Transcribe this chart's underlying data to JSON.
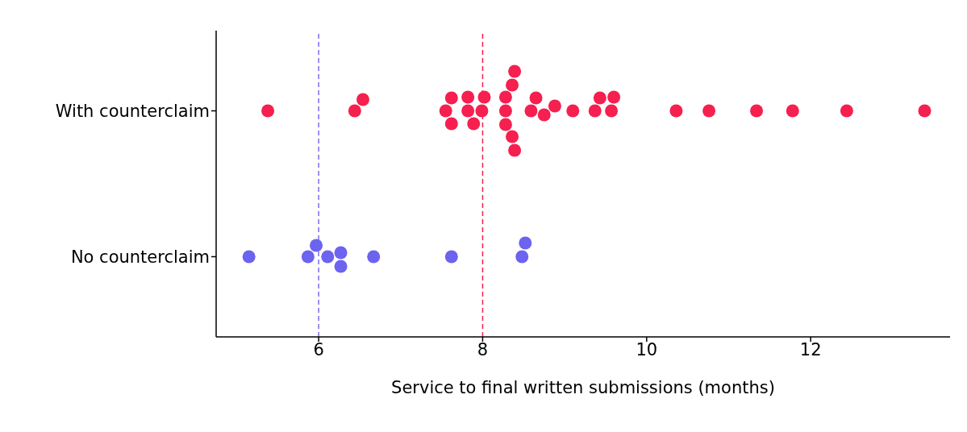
{
  "chart_data": {
    "type": "scatter",
    "orientation": "horizontal",
    "categories": [
      "With counterclaim",
      "No counterclaim"
    ],
    "xlabel": "Service to final written submissions (months)",
    "xlim": [
      4.75,
      13.7
    ],
    "xticks": [
      6,
      8,
      10,
      12
    ],
    "series": [
      {
        "color": "#f5204f",
        "x": [
          "With counterclaim",
          "With counterclaim",
          "With counterclaim",
          "With counterclaim",
          "With counterclaim",
          "With counterclaim",
          "With counterclaim",
          "With counterclaim",
          "With counterclaim",
          "With counterclaim",
          "With counterclaim",
          "With counterclaim",
          "With counterclaim",
          "With counterclaim",
          "With counterclaim",
          "With counterclaim",
          "With counterclaim",
          "With counterclaim",
          "With counterclaim",
          "With counterclaim",
          "With counterclaim",
          "With counterclaim",
          "With counterclaim",
          "With counterclaim",
          "With counterclaim",
          "With counterclaim",
          "With counterclaim",
          "With counterclaim",
          "With counterclaim",
          "With counterclaim",
          "With counterclaim",
          "With counterclaim",
          "With counterclaim"
        ],
        "values": [
          5.38,
          6.44,
          6.54,
          7.55,
          7.62,
          7.62,
          7.82,
          7.82,
          7.89,
          7.99,
          8.02,
          8.28,
          8.28,
          8.28,
          8.36,
          8.36,
          8.39,
          8.39,
          8.59,
          8.65,
          8.75,
          8.88,
          9.1,
          9.37,
          9.43,
          9.57,
          9.6,
          10.36,
          10.76,
          11.34,
          11.78,
          12.44,
          13.39
        ]
      },
      {
        "color": "#6c63f0",
        "x": [
          "No counterclaim",
          "No counterclaim",
          "No counterclaim",
          "No counterclaim",
          "No counterclaim",
          "No counterclaim",
          "No counterclaim",
          "No counterclaim",
          "No counterclaim",
          "No counterclaim"
        ],
        "values": [
          5.15,
          5.87,
          5.97,
          6.11,
          6.27,
          6.27,
          6.67,
          7.62,
          8.48,
          8.52
        ]
      }
    ],
    "ref_lines": [
      {
        "axis": "x",
        "value": 6,
        "color": "#7b6cf5",
        "line_style": "dashed"
      },
      {
        "axis": "x",
        "value": 8,
        "color": "#f5204f",
        "line_style": "dashed"
      }
    ]
  }
}
